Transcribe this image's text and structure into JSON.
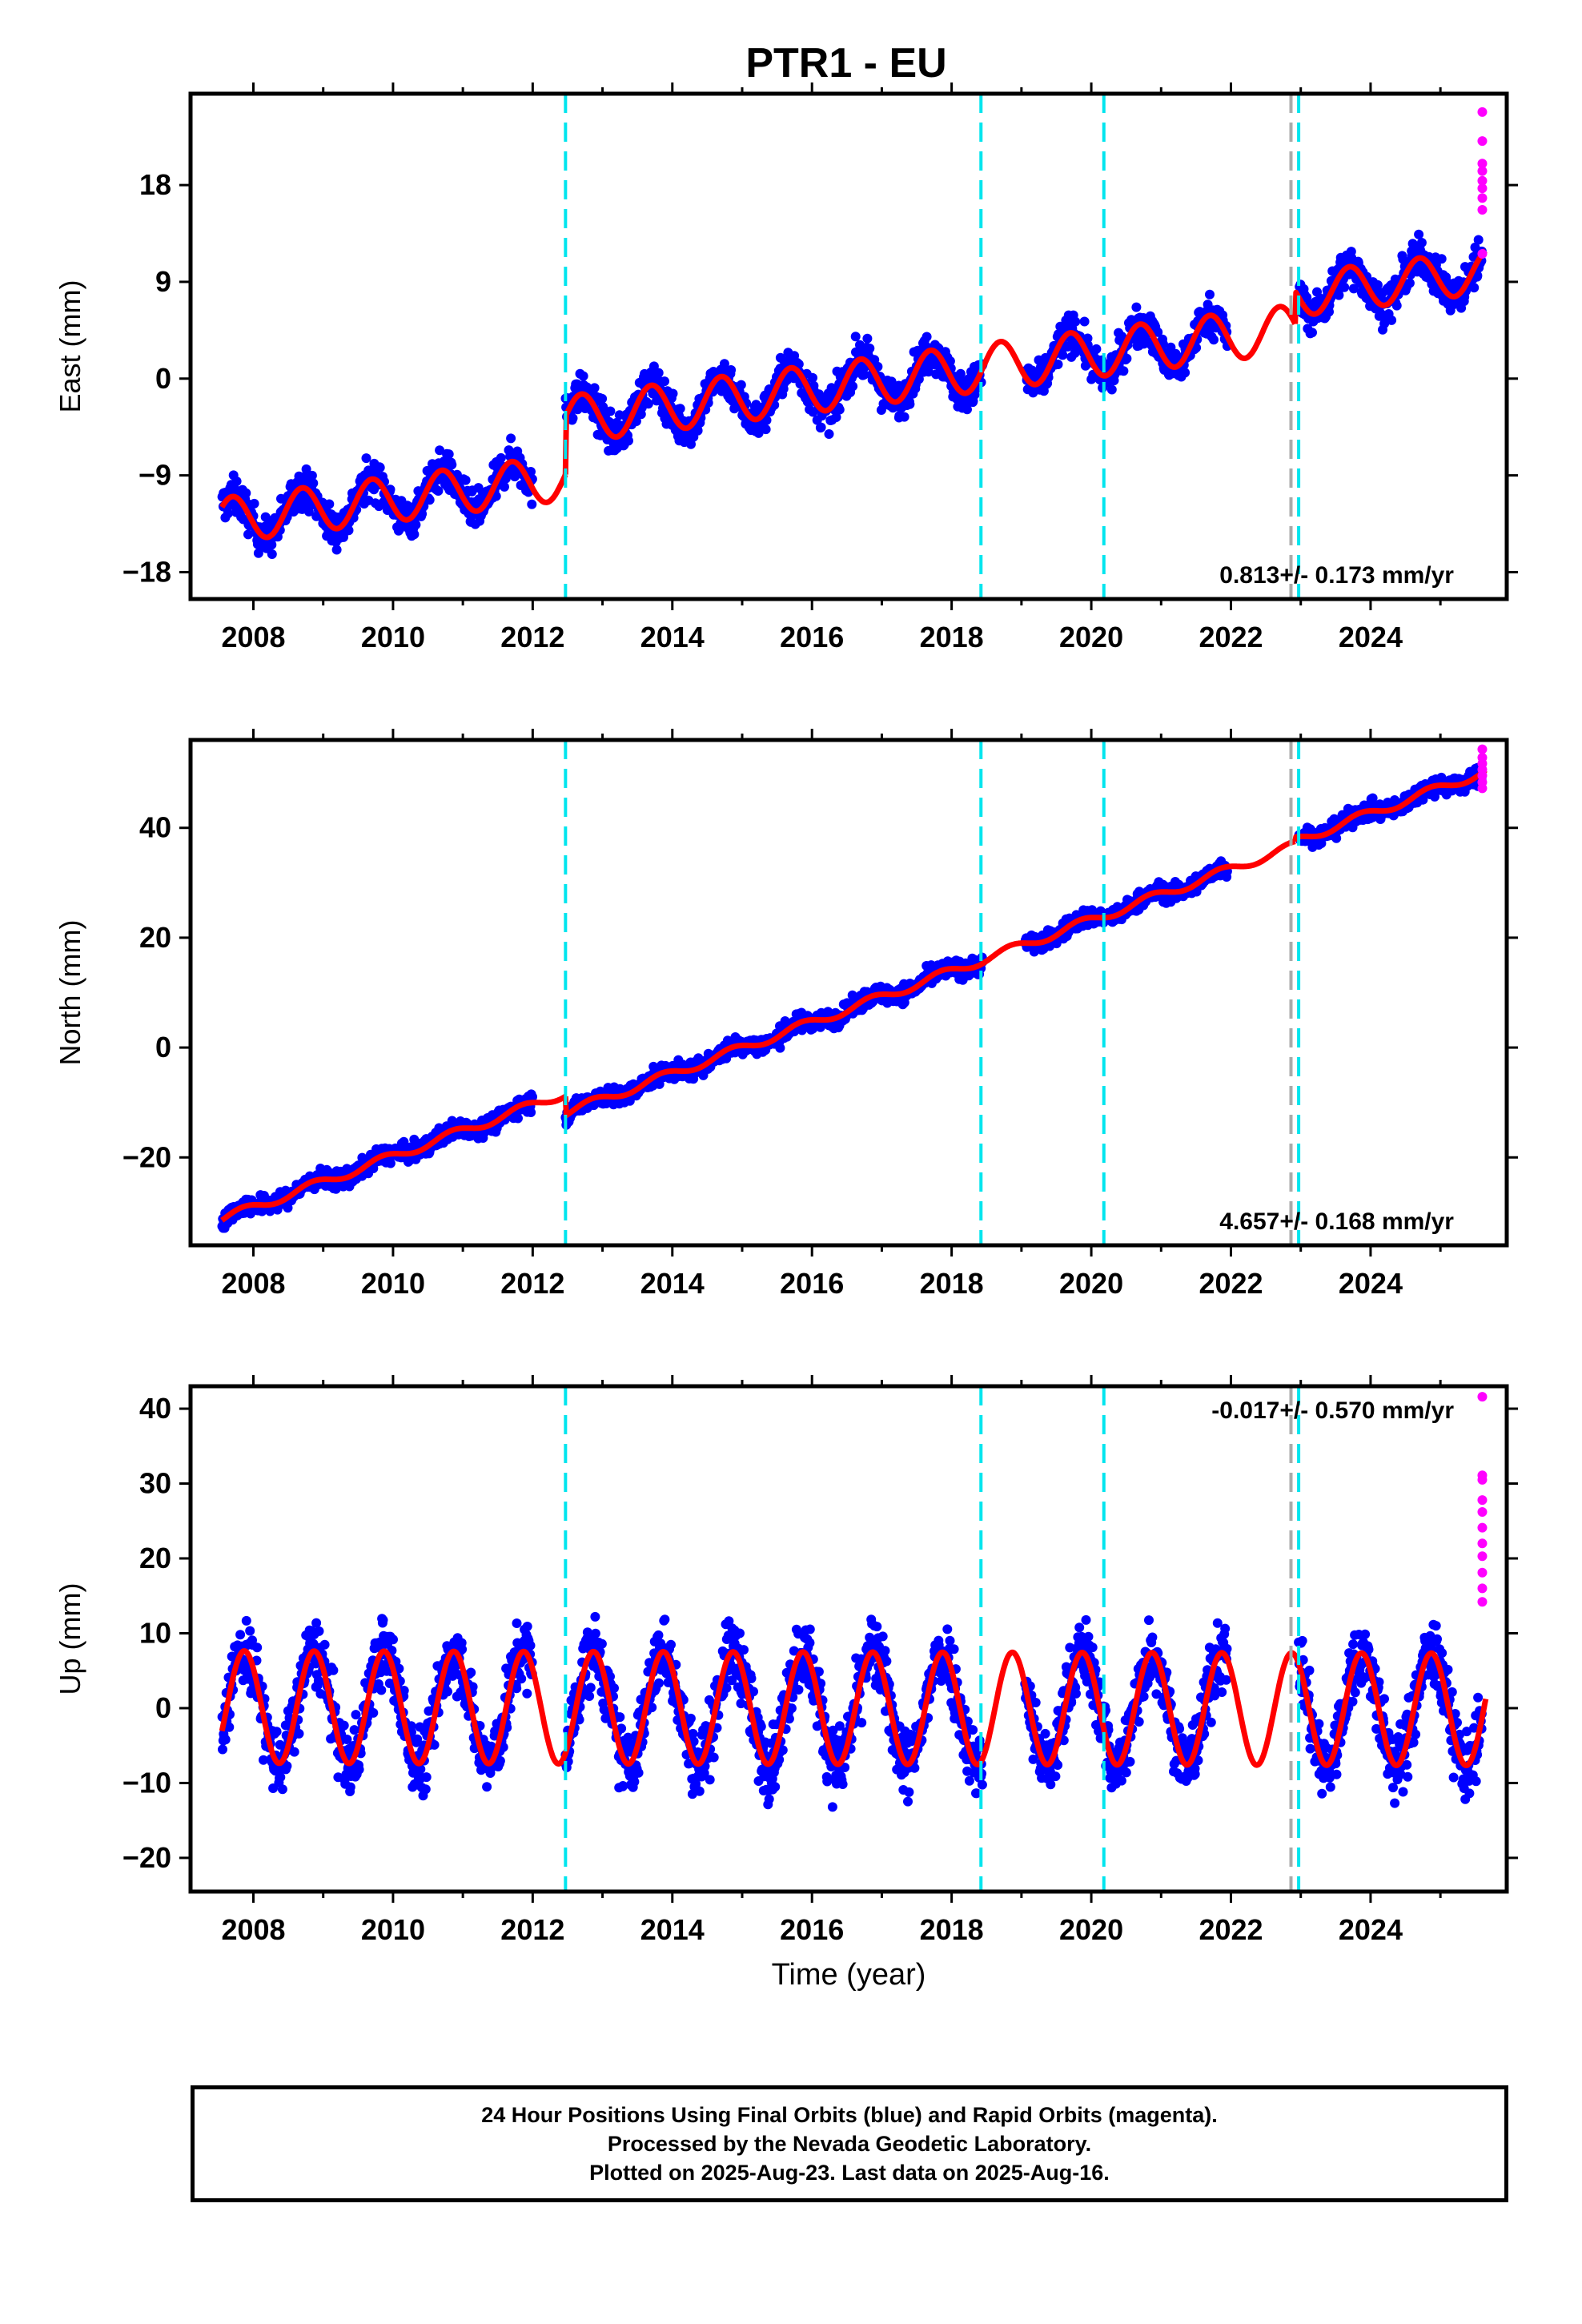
{
  "title": "PTR1 - EU",
  "chart_data": [
    {
      "type": "scatter",
      "panel": "east",
      "ylabel": "East (mm)",
      "xlabel": "",
      "ylim": [
        -20.5,
        26.5
      ],
      "xlim": [
        2007.1,
        2025.95
      ],
      "yticks": [
        -18,
        -9,
        0,
        9,
        18
      ],
      "xticks": [
        2008,
        2010,
        2012,
        2014,
        2016,
        2018,
        2020,
        2022,
        2024
      ],
      "rate_annotation": "0.813+/- 0.173 mm/yr",
      "annotation_position": "bottom-right",
      "breaks": [
        2012.47,
        2018.42,
        2020.18,
        2022.97
      ],
      "gray_breaks": [
        2022.86
      ],
      "model_segments": [
        {
          "x0": 2007.55,
          "x1": 2012.47,
          "offset": -11.2,
          "slope": 0.813,
          "ref": 2010.0,
          "amp": 2.1,
          "phase": 0.45
        },
        {
          "x0": 2012.47,
          "x1": 2022.92,
          "offset": 2.3,
          "slope": 0.813,
          "ref": 2020.0,
          "amp": 2.2,
          "phase": 0.45
        },
        {
          "x0": 2022.92,
          "x1": 2025.65,
          "offset": 5.4,
          "slope": 0.813,
          "ref": 2020.0,
          "amp": 2.0,
          "phase": 0.45
        }
      ],
      "data_spans": [
        [
          2007.55,
          2012.0
        ],
        [
          2012.47,
          2018.45
        ],
        [
          2019.05,
          2021.95
        ],
        [
          2022.97,
          2025.6
        ]
      ],
      "noise": 1.6,
      "rapid_x": 2025.6,
      "rapid_values": [
        24.8,
        22.1,
        20.0,
        19.3,
        18.4,
        17.7,
        16.8,
        15.7,
        11.6
      ]
    },
    {
      "type": "scatter",
      "panel": "north",
      "ylabel": "North (mm)",
      "xlabel": "",
      "ylim": [
        -36,
        56
      ],
      "xlim": [
        2007.1,
        2025.95
      ],
      "yticks": [
        -20,
        0,
        20,
        40
      ],
      "xticks": [
        2008,
        2010,
        2012,
        2014,
        2016,
        2018,
        2020,
        2022,
        2024
      ],
      "rate_annotation": "4.657+/- 0.168 mm/yr",
      "annotation_position": "bottom-right",
      "breaks": [
        2012.47,
        2018.42,
        2020.18,
        2022.97
      ],
      "gray_breaks": [
        2022.86
      ],
      "model_segments": [
        {
          "x0": 2007.55,
          "x1": 2012.47,
          "offset": -19.8,
          "slope": 4.657,
          "ref": 2010.0,
          "amp": 0.8,
          "phase": 0.6
        },
        {
          "x0": 2012.47,
          "x1": 2022.92,
          "offset": 23.2,
          "slope": 4.657,
          "ref": 2020.0,
          "amp": 0.8,
          "phase": 0.6
        },
        {
          "x0": 2022.92,
          "x1": 2025.65,
          "offset": 24.0,
          "slope": 4.657,
          "ref": 2020.0,
          "amp": 0.8,
          "phase": 0.6
        }
      ],
      "data_spans": [
        [
          2007.55,
          2012.0
        ],
        [
          2012.47,
          2018.45
        ],
        [
          2019.05,
          2021.95
        ],
        [
          2022.97,
          2025.6
        ]
      ],
      "noise": 1.5,
      "rapid_x": 2025.6,
      "rapid_values": [
        54.3,
        52.8,
        51.7,
        50.6,
        49.5,
        48.3,
        47.2
      ]
    },
    {
      "type": "scatter",
      "panel": "up",
      "ylabel": "Up (mm)",
      "xlabel": "Time (year)",
      "ylim": [
        -24.5,
        43
      ],
      "xlim": [
        2007.1,
        2025.95
      ],
      "yticks": [
        -20,
        -10,
        0,
        10,
        20,
        30,
        40
      ],
      "xticks": [
        2008,
        2010,
        2012,
        2014,
        2016,
        2018,
        2020,
        2022,
        2024
      ],
      "rate_annotation": "-0.017+/- 0.570 mm/yr",
      "annotation_position": "top-right",
      "breaks": [
        2012.47,
        2018.42,
        2020.18,
        2022.97
      ],
      "gray_breaks": [
        2022.86
      ],
      "model_segments": [
        {
          "x0": 2007.55,
          "x1": 2025.65,
          "offset": 0.0,
          "slope": -0.017,
          "ref": 2016.0,
          "amp": 7.5,
          "phase": 0.62
        }
      ],
      "data_spans": [
        [
          2007.55,
          2012.0
        ],
        [
          2012.47,
          2018.45
        ],
        [
          2019.05,
          2021.95
        ],
        [
          2022.97,
          2025.6
        ]
      ],
      "noise": 4.2,
      "rapid_x": 2025.6,
      "rapid_values": [
        41.6,
        31.1,
        30.5,
        27.8,
        26.2,
        24.1,
        22.0,
        20.3,
        18.1,
        16.0,
        14.2
      ]
    }
  ],
  "colors": {
    "final_orbits": "#0000ff",
    "rapid_orbits": "#ff00ff",
    "model": "#ff0000",
    "breaks": "#00e5ee",
    "gray_break": "#aaaaaa"
  },
  "footer": {
    "line1": "24 Hour Positions Using Final Orbits (blue) and Rapid Orbits (magenta).",
    "line2": "Processed by the Nevada Geodetic Laboratory.",
    "line3": "Plotted on 2025-Aug-23. Last data on 2025-Aug-16."
  }
}
